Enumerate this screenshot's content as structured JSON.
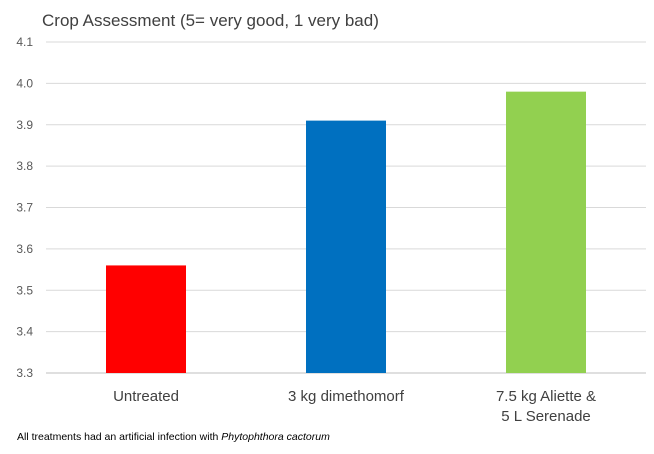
{
  "chart_data": {
    "type": "bar",
    "title": "Crop Assessment (5= very good, 1 very bad)",
    "categories": [
      [
        "Untreated"
      ],
      [
        "3 kg dimethomorf"
      ],
      [
        "7.5 kg Aliette &",
        "5 L Serenade"
      ]
    ],
    "values": [
      3.56,
      3.91,
      3.98
    ],
    "colors": [
      "#ff0000",
      "#0070c0",
      "#92d050"
    ],
    "xlabel": "",
    "ylabel": "",
    "ylim": [
      3.3,
      4.1
    ],
    "yticks": [
      "3.3",
      "3.4",
      "3.5",
      "3.6",
      "3.7",
      "3.8",
      "3.9",
      "4.0",
      "4.1"
    ],
    "grid": true,
    "legend": "none"
  },
  "footnote": {
    "text": "All treatments had an artificial infection with ",
    "italic": "Phytophthora cactorum"
  }
}
